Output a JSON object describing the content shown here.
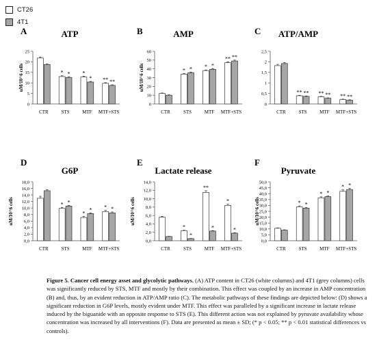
{
  "figure": {
    "legend": [
      {
        "label": "CT26",
        "color": "#ffffff"
      },
      {
        "label": "4T1",
        "color": "#a6a6a6"
      }
    ],
    "caption_title": "Figure 5.  Cancer cell energy asset and glycolytic pathways.",
    "caption_body": " (A) ATP content in CT26 (white columns) and 4T1 (grey columns) cells was significantly reduced by STS, MTF and mostly by their combination. This effect was coupled by an increase in AMP concentration (B) and, thus, by an evident reduction in ATP/AMP ratio (C). The metabolic pathways of these findings are depicted below: (D) shows a significant reduction in G6P levels, mostly evident under MTF. This effect was paralleled by a significant increase in lactate release induced by the biguanide with an opposite response to STS (E). This different action was not explained by pyruvate availability whose concentration was increased by all interventions (F). Data are presented as mean ± SD; (* p < 0.05; ** p < 0.01 statistical differences vs controls)."
  },
  "chart_data": [
    {
      "panel": "A",
      "type": "bar",
      "title": "ATP",
      "ylabel": "uM/10^6 cells",
      "categories": [
        "CTR",
        "STS",
        "MTF",
        "MTF+STS"
      ],
      "yticks": [
        "0",
        "5",
        "10",
        "15",
        "20",
        "25"
      ],
      "ylim": [
        0,
        25
      ],
      "series": [
        {
          "name": "CT26",
          "values": [
            21.8,
            13.0,
            12.8,
            9.8
          ],
          "err": [
            0.5,
            0.4,
            0.4,
            0.3
          ],
          "sig": [
            "",
            "*",
            "*",
            "**"
          ]
        },
        {
          "name": "4T1",
          "values": [
            18.7,
            12.6,
            10.4,
            8.8
          ],
          "err": [
            0.4,
            0.3,
            0.3,
            0.3
          ],
          "sig": [
            "",
            "*",
            "*",
            "**"
          ]
        }
      ]
    },
    {
      "panel": "B",
      "type": "bar",
      "title": "AMP",
      "ylabel": "uM/10^6 cells",
      "categories": [
        "CTR",
        "STS",
        "MTF",
        "MTF+STS"
      ],
      "yticks": [
        "0",
        "10",
        "20",
        "30",
        "40",
        "50",
        "60"
      ],
      "ylim": [
        0,
        60
      ],
      "series": [
        {
          "name": "CT26",
          "values": [
            12.0,
            34.0,
            38.0,
            47.0
          ],
          "err": [
            0.5,
            0.8,
            0.8,
            1.0
          ],
          "sig": [
            "",
            "*",
            "*",
            "**"
          ]
        },
        {
          "name": "4T1",
          "values": [
            10.0,
            35.5,
            39.5,
            49.0
          ],
          "err": [
            0.4,
            0.8,
            0.8,
            1.0
          ],
          "sig": [
            "",
            "*",
            "*",
            "**"
          ]
        }
      ]
    },
    {
      "panel": "C",
      "type": "bar",
      "title": "ATP/AMP",
      "ylabel": "",
      "categories": [
        "CTR",
        "STS",
        "MTF",
        "MTF+STS"
      ],
      "yticks": [
        "0",
        "0,5",
        "1",
        "1,5",
        "2",
        "2,5"
      ],
      "ylim": [
        0,
        2.5
      ],
      "series": [
        {
          "name": "CT26",
          "values": [
            1.82,
            0.39,
            0.34,
            0.21
          ],
          "err": [
            0.06,
            0.02,
            0.02,
            0.02
          ],
          "sig": [
            "",
            "**",
            "**",
            "**"
          ]
        },
        {
          "name": "4T1",
          "values": [
            1.92,
            0.36,
            0.27,
            0.18
          ],
          "err": [
            0.05,
            0.02,
            0.02,
            0.02
          ],
          "sig": [
            "",
            "**",
            "**",
            "**"
          ]
        }
      ]
    },
    {
      "panel": "D",
      "type": "bar",
      "title": "G6P",
      "ylabel": "uM/10^6 cells",
      "categories": [
        "CTR",
        "STS",
        "MTF",
        "MTF+STS"
      ],
      "yticks": [
        "0,0",
        "2,0",
        "4,0",
        "6,0",
        "8,0",
        "10,0",
        "12,0",
        "14,0",
        "16,0",
        "18,0"
      ],
      "ylim": [
        0,
        18
      ],
      "series": [
        {
          "name": "CT26",
          "values": [
            13.0,
            9.9,
            7.1,
            8.9
          ],
          "err": [
            0.6,
            0.3,
            0.3,
            0.4
          ],
          "sig": [
            "",
            "*",
            "*",
            "*"
          ]
        },
        {
          "name": "4T1",
          "values": [
            15.3,
            10.6,
            8.3,
            8.5
          ],
          "err": [
            0.3,
            0.2,
            0.2,
            0.3
          ],
          "sig": [
            "",
            "*",
            "*",
            "*"
          ]
        }
      ]
    },
    {
      "panel": "E",
      "type": "bar",
      "title": "Lactate release",
      "ylabel": "uM/10^6 cells",
      "categories": [
        "CTR",
        "STS",
        "MTF",
        "MTF+STS"
      ],
      "yticks": [
        "0,0",
        "2,0",
        "4,0",
        "6,0",
        "8,0",
        "10,0",
        "12,0",
        "14,0"
      ],
      "ylim": [
        0,
        14
      ],
      "series": [
        {
          "name": "CT26",
          "values": [
            5.6,
            2.4,
            11.5,
            8.4
          ],
          "err": [
            0.2,
            0.1,
            0.4,
            0.3
          ],
          "sig": [
            "",
            "*",
            "**",
            "*"
          ]
        },
        {
          "name": "4T1",
          "values": [
            1.0,
            0.5,
            2.3,
            1.8
          ],
          "err": [
            0.05,
            0.05,
            0.1,
            0.1
          ],
          "sig": [
            "",
            "*",
            "*",
            "*"
          ]
        }
      ]
    },
    {
      "panel": "F",
      "type": "bar",
      "title": "Pyruvate",
      "ylabel": "uM/10^6 cells",
      "categories": [
        "CTR",
        "STS",
        "MTF",
        "MTF+STS"
      ],
      "yticks": [
        "0,0",
        "5,0",
        "10,0",
        "15,0",
        "20,0",
        "25,0",
        "30,0",
        "35,0",
        "40,0",
        "45,0",
        "50,0"
      ],
      "ylim": [
        0,
        50
      ],
      "series": [
        {
          "name": "CT26",
          "values": [
            10.6,
            28.8,
            36.5,
            42.0
          ],
          "err": [
            0.3,
            0.8,
            0.8,
            1.2
          ],
          "sig": [
            "",
            "*",
            "*",
            "*"
          ]
        },
        {
          "name": "4T1",
          "values": [
            9.0,
            27.7,
            37.5,
            43.5
          ],
          "err": [
            0.3,
            0.6,
            0.6,
            1.0
          ],
          "sig": [
            "",
            "*",
            "*",
            "*"
          ]
        }
      ]
    }
  ]
}
